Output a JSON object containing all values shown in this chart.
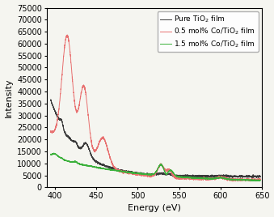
{
  "title": "",
  "xlabel": "Energy (eV)",
  "ylabel": "Intensity",
  "xlim": [
    390,
    650
  ],
  "ylim": [
    0,
    75000
  ],
  "yticks": [
    0,
    5000,
    10000,
    15000,
    20000,
    25000,
    30000,
    35000,
    40000,
    45000,
    50000,
    55000,
    60000,
    65000,
    70000,
    75000
  ],
  "xticks": [
    400,
    450,
    500,
    550,
    600,
    650
  ],
  "legend": [
    {
      "label": "Pure TiO$_2$ film",
      "color": "#3a3a3a"
    },
    {
      "label": "0.5 mol% Co/TiO$_2$ film",
      "color": "#e87070"
    },
    {
      "label": "1.5 mol% Co/TiO$_2$ film",
      "color": "#3ab03a"
    }
  ],
  "line_width": 0.7,
  "background_color": "#f5f5f0",
  "legend_fontsize": 6.5,
  "axis_fontsize": 8,
  "tick_fontsize": 7
}
